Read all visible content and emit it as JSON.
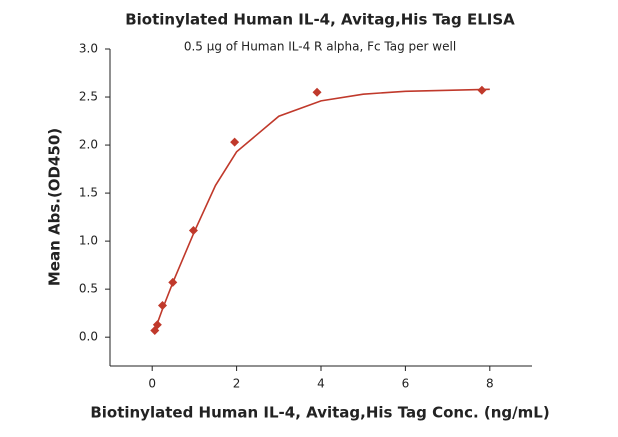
{
  "chart_data": {
    "type": "scatter",
    "title": "Biotinylated Human IL-4, Avitag,His Tag ELISA",
    "subtitle": "0.5 μg of Human IL-4 R alpha, Fc Tag per well",
    "x_label": "Biotinylated Human IL-4, Avitag,His Tag Conc. (ng/mL)",
    "y_label": "Mean Abs.(OD450)",
    "x": [
      0.061,
      0.122,
      0.244,
      0.488,
      0.977,
      1.953,
      3.906,
      7.813
    ],
    "series": [
      {
        "color": "#c0392b",
        "values": [
          0.07,
          0.13,
          0.33,
          0.57,
          1.11,
          2.03,
          2.55,
          2.57
        ]
      }
    ],
    "fit": {
      "color": "#c0392b",
      "x": [
        0.06,
        0.25,
        0.5,
        1,
        1.5,
        2,
        3,
        4,
        5,
        6,
        7,
        8
      ],
      "y": [
        0.07,
        0.3,
        0.58,
        1.1,
        1.58,
        1.93,
        2.3,
        2.46,
        2.53,
        2.56,
        2.57,
        2.58
      ]
    },
    "xlim": [
      -1,
      9
    ],
    "ylim": [
      -0.3,
      3.0
    ],
    "xticks": [
      0,
      2,
      4,
      6,
      8
    ],
    "yticks": [
      {
        "value": 0,
        "label": "0.0"
      },
      0.5,
      {
        "value": 1,
        "label": "1.0"
      },
      1.5,
      {
        "value": 2,
        "label": "2.0"
      },
      2.5,
      {
        "value": 3,
        "label": "3.0"
      }
    ]
  }
}
